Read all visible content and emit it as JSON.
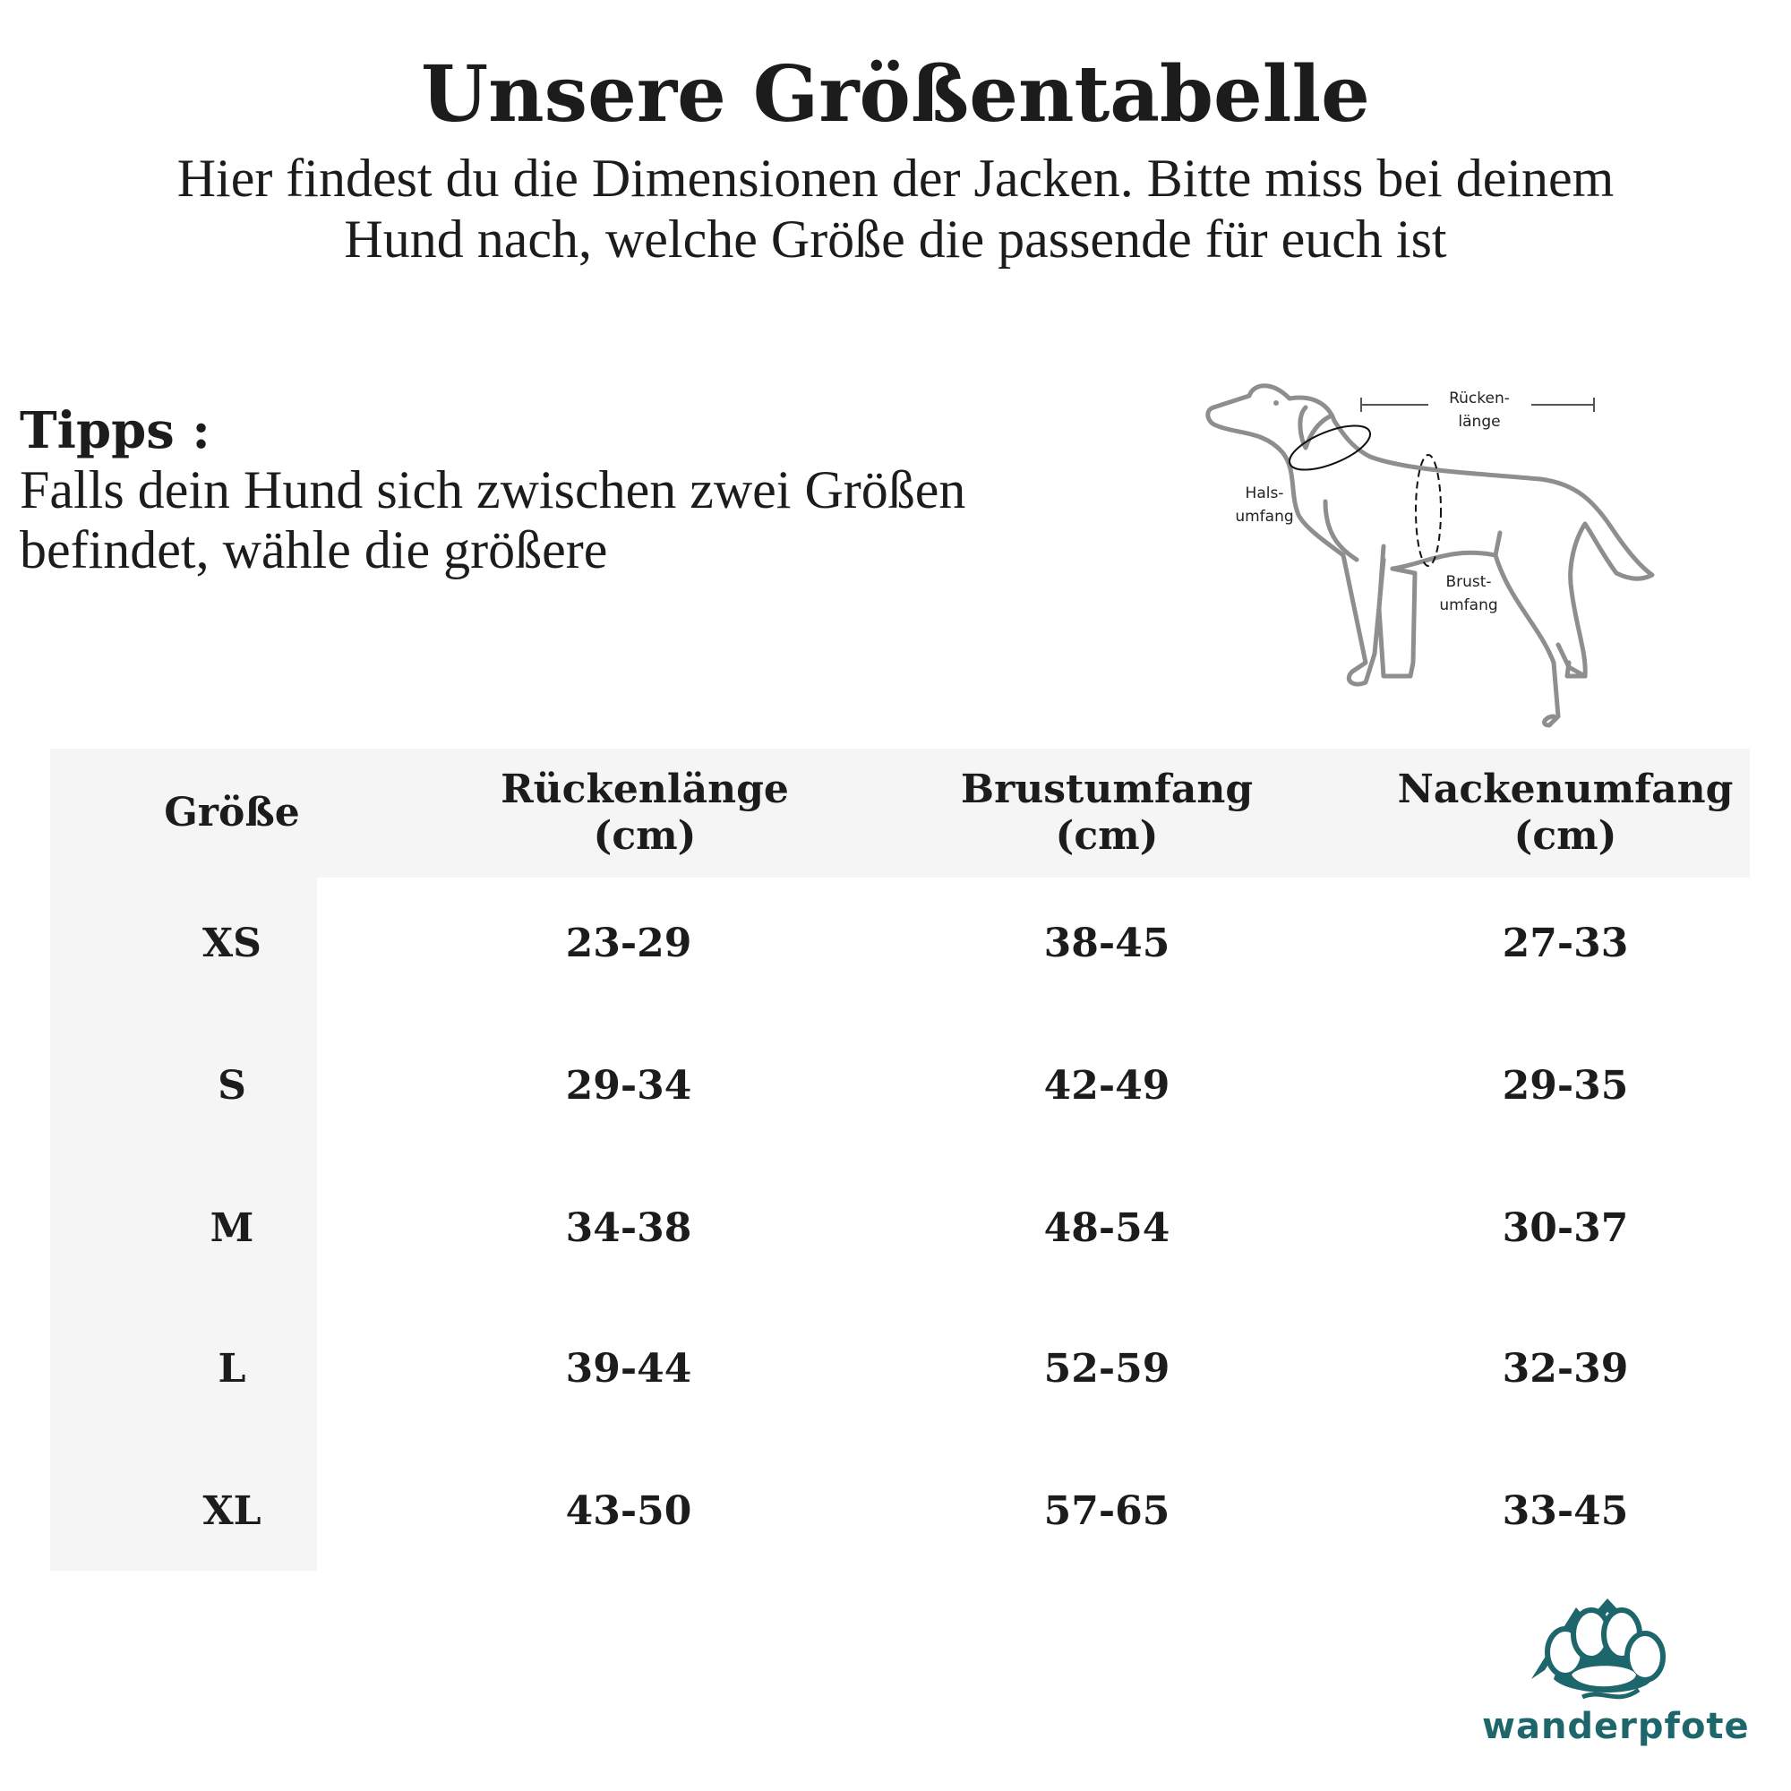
{
  "title": "Unsere Größentabelle",
  "subtitle_line1": "Hier findest du die Dimensionen der Jacken. Bitte miss bei deinem",
  "subtitle_line2": "Hund nach, welche Größe die passende für euch ist",
  "tips": {
    "heading": "Tipps :",
    "line1": "Falls dein Hund sich zwischen zwei Größen",
    "line2": "befindet, wähle die größere"
  },
  "diagram": {
    "back_length_1": "Rücken-",
    "back_length_2": "länge",
    "neck_1": "Hals-",
    "neck_2": "umfang",
    "chest_1": "Brust-",
    "chest_2": "umfang"
  },
  "table": {
    "headers": [
      {
        "line1": "Größe",
        "line2": ""
      },
      {
        "line1": "Rückenlänge",
        "line2": "(cm)"
      },
      {
        "line1": "Brustumfang",
        "line2": "(cm)"
      },
      {
        "line1": "Nackenumfang",
        "line2": "(cm)"
      }
    ],
    "rows": [
      [
        "XS",
        "23-29",
        "38-45",
        "27-33"
      ],
      [
        "S",
        "29-34",
        "42-49",
        "29-35"
      ],
      [
        "M",
        "34-38",
        "48-54",
        "30-37"
      ],
      [
        "L",
        "39-44",
        "52-59",
        "32-39"
      ],
      [
        "XL",
        "43-50",
        "57-65",
        "33-45"
      ]
    ]
  },
  "logo": {
    "text": "wanderpfote",
    "color": "#1d666b"
  },
  "colors": {
    "header_bg": "#f5f5f5",
    "text": "#1c1c1c",
    "dog_outline": "#8e8e8e"
  }
}
